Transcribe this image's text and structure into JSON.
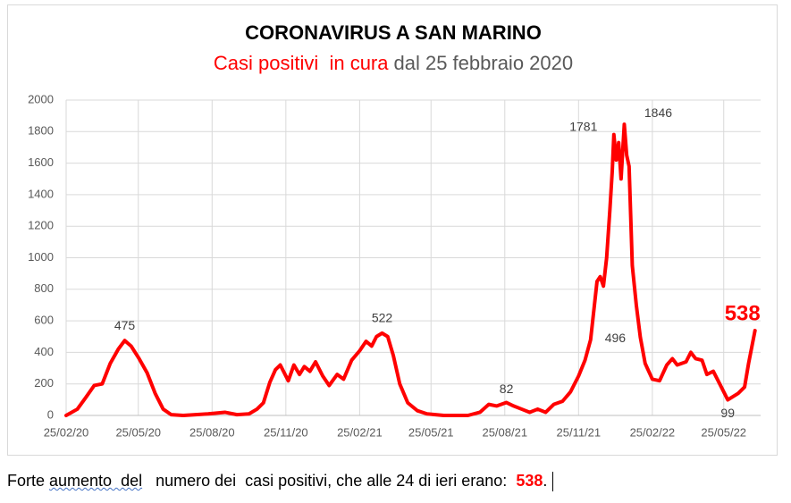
{
  "chart_data": {
    "type": "line",
    "title": "CORONAVIRUS A SAN MARINO",
    "subtitle_highlight": "Casi positivi  in cura",
    "subtitle_rest": "dal 25 febbraio 2020",
    "x": [
      "2020-02-25",
      "2020-03-10",
      "2020-03-20",
      "2020-03-31",
      "2020-04-10",
      "2020-04-20",
      "2020-04-30",
      "2020-05-08",
      "2020-05-16",
      "2020-05-26",
      "2020-06-05",
      "2020-06-15",
      "2020-06-25",
      "2020-07-05",
      "2020-07-20",
      "2020-08-20",
      "2020-09-10",
      "2020-09-25",
      "2020-10-10",
      "2020-10-20",
      "2020-10-28",
      "2020-11-05",
      "2020-11-12",
      "2020-11-18",
      "2020-11-28",
      "2020-12-05",
      "2020-12-12",
      "2020-12-18",
      "2020-12-25",
      "2021-01-01",
      "2021-01-10",
      "2021-01-18",
      "2021-01-28",
      "2021-02-05",
      "2021-02-15",
      "2021-02-25",
      "2021-03-05",
      "2021-03-12",
      "2021-03-18",
      "2021-03-25",
      "2021-04-01",
      "2021-04-08",
      "2021-04-16",
      "2021-04-26",
      "2021-05-08",
      "2021-05-20",
      "2021-06-10",
      "2021-07-10",
      "2021-07-25",
      "2021-08-05",
      "2021-08-15",
      "2021-08-27",
      "2021-09-05",
      "2021-09-15",
      "2021-09-25",
      "2021-10-05",
      "2021-10-15",
      "2021-10-25",
      "2021-11-05",
      "2021-11-15",
      "2021-11-25",
      "2021-12-03",
      "2021-12-10",
      "2021-12-18",
      "2021-12-22",
      "2021-12-26",
      "2021-12-30",
      "2022-01-03",
      "2022-01-06",
      "2022-01-08",
      "2022-01-11",
      "2022-01-14",
      "2022-01-17",
      "2022-01-21",
      "2022-01-24",
      "2022-01-27",
      "2022-01-31",
      "2022-02-05",
      "2022-02-10",
      "2022-02-16",
      "2022-02-25",
      "2022-03-06",
      "2022-03-15",
      "2022-03-22",
      "2022-03-28",
      "2022-04-08",
      "2022-04-14",
      "2022-04-20",
      "2022-04-28",
      "2022-05-04",
      "2022-05-12",
      "2022-05-20",
      "2022-05-26",
      "2022-05-30",
      "2022-06-12",
      "2022-06-20",
      "2022-06-25",
      "2022-07-03"
    ],
    "series": [
      {
        "name": "Casi positivi in cura",
        "color": "#ff0000",
        "values": [
          0,
          40,
          110,
          190,
          200,
          330,
          420,
          475,
          440,
          360,
          270,
          140,
          40,
          5,
          0,
          10,
          20,
          5,
          10,
          40,
          80,
          210,
          290,
          320,
          220,
          320,
          260,
          310,
          280,
          340,
          250,
          190,
          260,
          230,
          350,
          410,
          470,
          440,
          500,
          522,
          500,
          380,
          200,
          80,
          30,
          10,
          0,
          0,
          20,
          70,
          60,
          82,
          60,
          40,
          20,
          40,
          20,
          70,
          90,
          150,
          250,
          350,
          480,
          850,
          880,
          820,
          1000,
          1300,
          1550,
          1781,
          1620,
          1730,
          1500,
          1846,
          1650,
          1580,
          950,
          700,
          496,
          330,
          230,
          220,
          320,
          360,
          320,
          340,
          400,
          360,
          350,
          260,
          280,
          200,
          140,
          99,
          140,
          180,
          330,
          538
        ]
      }
    ],
    "xlim": [
      "2020-02-25",
      "2022-07-10"
    ],
    "xticks": [
      {
        "value": "2020-02-25",
        "label": "25/02/20"
      },
      {
        "value": "2020-05-25",
        "label": "25/05/20"
      },
      {
        "value": "2020-08-25",
        "label": "25/08/20"
      },
      {
        "value": "2020-11-25",
        "label": "25/11/20"
      },
      {
        "value": "2021-02-25",
        "label": "25/02/21"
      },
      {
        "value": "2021-05-25",
        "label": "25/05/21"
      },
      {
        "value": "2021-08-25",
        "label": "25/08/21"
      },
      {
        "value": "2021-11-25",
        "label": "25/11/21"
      },
      {
        "value": "2022-02-25",
        "label": "25/02/22"
      },
      {
        "value": "2022-05-25",
        "label": "25/05/22"
      }
    ],
    "ylim": [
      0,
      2000
    ],
    "yticks": [
      0,
      200,
      400,
      600,
      800,
      1000,
      1200,
      1400,
      1600,
      1800,
      2000
    ],
    "grid": true
  },
  "footer": {
    "start": "Forte ",
    "underlined": "aumento  del",
    "middle": "   numero dei  casi positivi, che alle 24 di ieri erano:  ",
    "value": "538",
    "end": "."
  }
}
